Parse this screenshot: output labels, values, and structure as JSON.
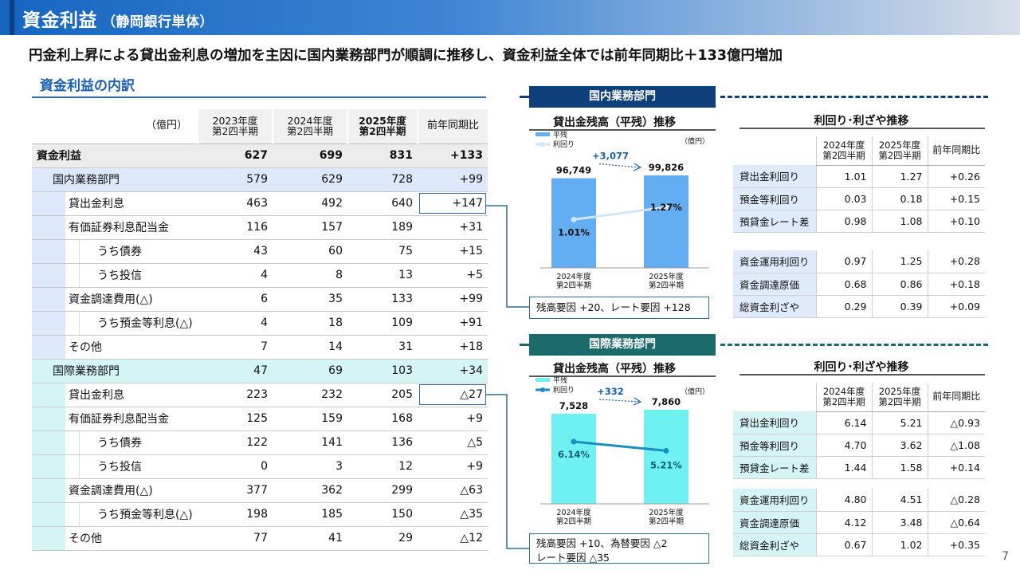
{
  "header": {
    "title": "資金利益",
    "subtitle": "（静岡銀行単体）"
  },
  "headline": "円金利上昇による貸出金利息の増加を主因に国内業務部門が順調に推移し、資金利益全体では前年同期比＋133億円増加",
  "section_title": "資金利益の内訳",
  "table": {
    "unit": "（億円）",
    "columns": [
      "2023年度\n第2四半期",
      "2024年度\n第2四半期",
      "2025年度\n第2四半期",
      "前年同期比"
    ],
    "rows": [
      {
        "label": "資金利益",
        "values": [
          "627",
          "699",
          "831",
          "+133"
        ]
      },
      {
        "label": "国内業務部門",
        "values": [
          "579",
          "629",
          "728",
          "+99"
        ]
      },
      {
        "label": "貸出金利息",
        "values": [
          "463",
          "492",
          "640",
          "+147"
        ]
      },
      {
        "label": "有価証券利息配当金",
        "values": [
          "116",
          "157",
          "189",
          "+31"
        ]
      },
      {
        "label": "うち債券",
        "values": [
          "43",
          "60",
          "75",
          "+15"
        ]
      },
      {
        "label": "うち投信",
        "values": [
          "4",
          "8",
          "13",
          "+5"
        ]
      },
      {
        "label": "資金調達費用(△)",
        "values": [
          "6",
          "35",
          "133",
          "+99"
        ]
      },
      {
        "label": "うち預金等利息(△)",
        "values": [
          "4",
          "18",
          "109",
          "+91"
        ]
      },
      {
        "label": "その他",
        "values": [
          "7",
          "14",
          "31",
          "+18"
        ]
      },
      {
        "label": "国際業務部門",
        "values": [
          "47",
          "69",
          "103",
          "+34"
        ]
      },
      {
        "label": "貸出金利息",
        "values": [
          "223",
          "232",
          "205",
          "△27"
        ]
      },
      {
        "label": "有価証券利息配当金",
        "values": [
          "125",
          "159",
          "168",
          "+9"
        ]
      },
      {
        "label": "うち債券",
        "values": [
          "122",
          "141",
          "136",
          "△5"
        ]
      },
      {
        "label": "うち投信",
        "values": [
          "0",
          "3",
          "12",
          "+9"
        ]
      },
      {
        "label": "資金調達費用(△)",
        "values": [
          "377",
          "362",
          "299",
          "△63"
        ]
      },
      {
        "label": "うち預金等利息(△)",
        "values": [
          "198",
          "185",
          "150",
          "△35"
        ]
      },
      {
        "label": "その他",
        "values": [
          "77",
          "41",
          "29",
          "△12"
        ]
      }
    ]
  },
  "domestic": {
    "tag": "国内業務部門",
    "chart_title": "貸出金残高（平残）推移",
    "note": "残高要因 +20、レート要因 +128",
    "rates_title": "利回り･利ざや推移",
    "rates_cols": [
      "2024年度\n第2四半期",
      "2025年度\n第2四半期",
      "前年同期比"
    ],
    "rates_group1": [
      {
        "label": "貸出金利回り",
        "values": [
          "1.01",
          "1.27",
          "+0.26"
        ]
      },
      {
        "label": "預金等利回り",
        "values": [
          "0.03",
          "0.18",
          "+0.15"
        ]
      },
      {
        "label": "預貸金レート差",
        "values": [
          "0.98",
          "1.08",
          "+0.10"
        ]
      }
    ],
    "rates_group2": [
      {
        "label": "資金運用利回り",
        "values": [
          "0.97",
          "1.25",
          "+0.28"
        ]
      },
      {
        "label": "資金調達原価",
        "values": [
          "0.68",
          "0.86",
          "+0.18"
        ]
      },
      {
        "label": "総資金利ざや",
        "values": [
          "0.29",
          "0.39",
          "+0.09"
        ]
      }
    ]
  },
  "international": {
    "tag": "国際業務部門",
    "chart_title": "貸出金残高（平残）推移",
    "note_line1": "残高要因 +10、為替要因 △2",
    "note_line2": "レート要因 △35",
    "rates_title": "利回り･利ざや推移",
    "rates_cols": [
      "2024年度\n第2四半期",
      "2025年度\n第2四半期",
      "前年同期比"
    ],
    "rates_group1": [
      {
        "label": "貸出金利回り",
        "values": [
          "6.14",
          "5.21",
          "△0.93"
        ]
      },
      {
        "label": "預金等利回り",
        "values": [
          "4.70",
          "3.62",
          "△1.08"
        ]
      },
      {
        "label": "預貸金レート差",
        "values": [
          "1.44",
          "1.58",
          "+0.14"
        ]
      }
    ],
    "rates_group2": [
      {
        "label": "資金運用利回り",
        "values": [
          "4.80",
          "4.51",
          "△0.28"
        ]
      },
      {
        "label": "資金調達原価",
        "values": [
          "4.12",
          "3.48",
          "△0.64"
        ]
      },
      {
        "label": "総資金利ざや",
        "values": [
          "0.67",
          "1.02",
          "+0.35"
        ]
      }
    ]
  },
  "chart_data": [
    {
      "type": "bar",
      "title": "貸出金残高（平残）推移",
      "unit": "（億円）",
      "categories": [
        "2024年度\n第2四半期",
        "2025年度\n第2四半期"
      ],
      "series": [
        {
          "name": "平残",
          "values": [
            96749,
            99826
          ],
          "labels": [
            "96,749",
            "99,826"
          ],
          "color": "#63aef3"
        },
        {
          "name": "利回り",
          "values": [
            1.01,
            1.27
          ],
          "labels": [
            "1.01%",
            "1.27%"
          ],
          "color": "#cfe6f6"
        }
      ],
      "delta_label": "+3,077"
    },
    {
      "type": "bar",
      "title": "貸出金残高（平残）推移",
      "unit": "（億円）",
      "categories": [
        "2024年度\n第2四半期",
        "2025年度\n第2四半期"
      ],
      "series": [
        {
          "name": "平残",
          "values": [
            7528,
            7860
          ],
          "labels": [
            "7,528",
            "7,860"
          ],
          "color": "#6ff1f1"
        },
        {
          "name": "利回り",
          "values": [
            6.14,
            5.21
          ],
          "labels": [
            "6.14%",
            "5.21%"
          ],
          "color": "#1a8fbf"
        }
      ],
      "delta_label": "+332"
    }
  ],
  "page_number": "7"
}
